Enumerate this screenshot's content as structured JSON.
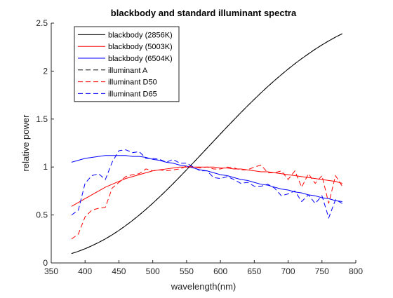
{
  "chart_data": {
    "type": "line",
    "title": "blackbody and standard illuminant spectra",
    "xlabel": "wavelength(nm)",
    "ylabel": "relative power",
    "xlim": [
      350,
      800
    ],
    "ylim": [
      0,
      2.5
    ],
    "xticks": [
      350,
      400,
      450,
      500,
      550,
      600,
      650,
      700,
      750,
      800
    ],
    "yticks": [
      0,
      0.5,
      1,
      1.5,
      2,
      2.5
    ],
    "ytick_labels": [
      "0",
      "0.5",
      "1",
      "1.5",
      "2",
      "2.5"
    ],
    "grid": false,
    "legend_position": "top-left",
    "x": [
      380,
      390,
      400,
      410,
      420,
      430,
      440,
      450,
      460,
      470,
      480,
      490,
      500,
      510,
      520,
      530,
      540,
      550,
      560,
      570,
      580,
      590,
      600,
      610,
      620,
      630,
      640,
      650,
      660,
      670,
      680,
      690,
      700,
      710,
      720,
      730,
      740,
      750,
      760,
      770,
      780
    ],
    "series": [
      {
        "name": "blackbody (2856K)",
        "color": "#000000",
        "dash": "solid",
        "values": [
          0.098,
          0.121,
          0.148,
          0.179,
          0.213,
          0.251,
          0.293,
          0.339,
          0.389,
          0.442,
          0.499,
          0.559,
          0.622,
          0.688,
          0.756,
          0.826,
          0.898,
          0.971,
          1.045,
          1.12,
          1.195,
          1.27,
          1.345,
          1.42,
          1.493,
          1.566,
          1.637,
          1.706,
          1.774,
          1.839,
          1.902,
          1.963,
          2.021,
          2.077,
          2.13,
          2.18,
          2.228,
          2.273,
          2.315,
          2.354,
          2.39
        ]
      },
      {
        "name": "blackbody (5003K)",
        "color": "#ff0000",
        "dash": "solid",
        "values": [
          0.59,
          0.63,
          0.67,
          0.71,
          0.75,
          0.79,
          0.82,
          0.85,
          0.88,
          0.9,
          0.92,
          0.94,
          0.96,
          0.97,
          0.98,
          0.99,
          1.0,
          1.0,
          1.0,
          1.0,
          1.0,
          1.0,
          0.99,
          0.99,
          0.98,
          0.98,
          0.97,
          0.96,
          0.95,
          0.95,
          0.94,
          0.93,
          0.92,
          0.91,
          0.9,
          0.89,
          0.88,
          0.87,
          0.86,
          0.85,
          0.83
        ]
      },
      {
        "name": "blackbody (6504K)",
        "color": "#0000ff",
        "dash": "solid",
        "values": [
          1.05,
          1.07,
          1.09,
          1.1,
          1.11,
          1.12,
          1.12,
          1.12,
          1.12,
          1.11,
          1.11,
          1.1,
          1.08,
          1.07,
          1.05,
          1.04,
          1.02,
          1.01,
          0.99,
          0.97,
          0.96,
          0.94,
          0.92,
          0.91,
          0.89,
          0.87,
          0.86,
          0.84,
          0.82,
          0.81,
          0.79,
          0.77,
          0.76,
          0.74,
          0.73,
          0.71,
          0.7,
          0.68,
          0.67,
          0.65,
          0.64
        ]
      },
      {
        "name": "illuminant A",
        "color": "#000000",
        "dash": "dashed",
        "values": [
          0.098,
          0.121,
          0.148,
          0.179,
          0.213,
          0.251,
          0.293,
          0.339,
          0.389,
          0.442,
          0.499,
          0.559,
          0.622,
          0.688,
          0.756,
          0.826,
          0.898,
          0.971,
          1.045,
          1.12,
          1.195,
          1.27,
          1.345,
          1.42,
          1.493,
          1.566,
          1.637,
          1.706,
          1.774,
          1.839,
          1.902,
          1.963,
          2.021,
          2.077,
          2.13,
          2.18,
          2.228,
          2.273,
          2.315,
          2.354,
          2.39
        ]
      },
      {
        "name": "illuminant D50",
        "color": "#ff0000",
        "dash": "dashed",
        "values": [
          0.25,
          0.3,
          0.48,
          0.55,
          0.57,
          0.58,
          0.78,
          0.84,
          0.9,
          0.92,
          0.93,
          0.98,
          0.96,
          0.97,
          0.96,
          0.97,
          0.98,
          1.01,
          1.0,
          0.99,
          1.0,
          0.98,
          0.98,
          1.0,
          0.99,
          0.97,
          0.97,
          1.0,
          1.02,
          0.94,
          0.94,
          0.96,
          0.87,
          0.96,
          0.79,
          0.93,
          0.83,
          0.91,
          0.62,
          0.91,
          0.8
        ]
      },
      {
        "name": "illuminant D65",
        "color": "#0000ff",
        "dash": "dashed",
        "values": [
          0.5,
          0.55,
          0.83,
          0.91,
          0.93,
          0.87,
          1.05,
          1.17,
          1.18,
          1.15,
          1.16,
          1.09,
          1.09,
          1.08,
          1.05,
          1.08,
          1.04,
          1.04,
          1.0,
          0.96,
          0.96,
          0.89,
          0.88,
          0.9,
          0.87,
          0.83,
          0.84,
          0.8,
          0.8,
          0.82,
          0.78,
          0.7,
          0.72,
          0.75,
          0.64,
          0.71,
          0.62,
          0.7,
          0.47,
          0.66,
          0.62
        ]
      }
    ]
  }
}
